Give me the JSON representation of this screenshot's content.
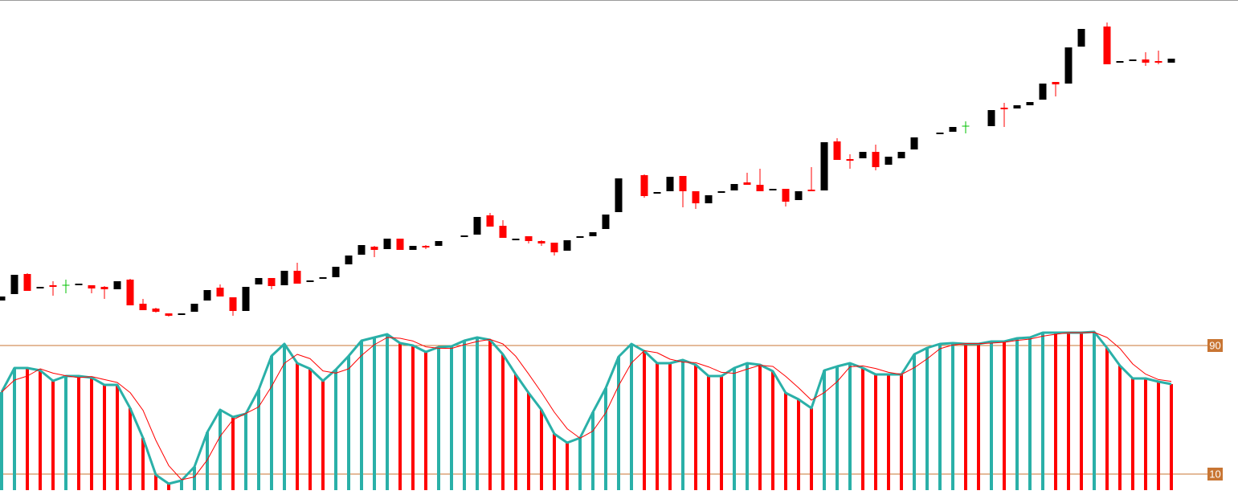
{
  "chart_data": [
    {
      "type": "candlestick",
      "open": [
        46,
        54,
        79,
        62,
        65,
        65,
        66,
        65,
        63,
        60,
        72,
        42,
        36,
        30,
        29,
        32,
        46,
        62,
        50,
        33,
        66,
        74,
        65,
        83,
        70,
        74,
        75,
        91,
        103,
        113,
        110,
        123,
        109,
        114,
        114,
        null,
        126,
        128,
        152,
        139,
        122,
        126,
        120,
        118,
        108,
        125,
        126,
        135,
        156,
        null,
        202,
        180,
        182,
        201,
        182,
        167,
        181,
        183,
        193,
        190,
        184,
        185,
        171,
        184,
        183,
        244,
        222,
        223,
        231,
        215,
        223,
        234,
        null,
        254,
        256,
        263,
        null,
        263,
        286,
        285,
        289,
        296,
        318,
        316,
        362,
        null,
        387,
        343,
        345,
        346,
        344,
        342
      ],
      "high": [
        51,
        78,
        80,
        63,
        70,
        72,
        67,
        65,
        64,
        70,
        73,
        48,
        37,
        30,
        30,
        42,
        59,
        66,
        50,
        63,
        74,
        74,
        83,
        93,
        71,
        75,
        88,
        102,
        115,
        114,
        123,
        123,
        114,
        115,
        120,
        null,
        127,
        150,
        155,
        146,
        123,
        126,
        121,
        118,
        121,
        126,
        131,
        153,
        198,
        null,
        203,
        181,
        200,
        201,
        182,
        177,
        182,
        191,
        205,
        210,
        185,
        185,
        182,
        212,
        243,
        248,
        228,
        231,
        240,
        225,
        231,
        249,
        null,
        255,
        262,
        269,
        null,
        283,
        292,
        289,
        293,
        316,
        318,
        361,
        384,
        null,
        392,
        344,
        346,
        355,
        357,
        347
      ],
      "low": [
        46,
        54,
        58,
        62,
        52,
        55,
        66,
        55,
        48,
        60,
        40,
        34,
        31,
        26,
        29,
        32,
        46,
        51,
        27,
        33,
        66,
        60,
        65,
        67,
        70,
        74,
        75,
        91,
        103,
        100,
        110,
        109,
        109,
        110,
        114,
        null,
        126,
        128,
        138,
        124,
        122,
        117,
        114,
        102,
        108,
        125,
        126,
        135,
        156,
        null,
        174,
        180,
        182,
        162,
        160,
        167,
        181,
        183,
        190,
        182,
        184,
        163,
        171,
        182,
        183,
        221,
        210,
        223,
        208,
        215,
        223,
        234,
        null,
        254,
        256,
        254,
        null,
        263,
        262,
        285,
        289,
        296,
        300,
        316,
        362,
        null,
        340,
        343,
        345,
        338,
        340,
        342
      ],
      "close": [
        51,
        78,
        58,
        63,
        64,
        65,
        67,
        61,
        60,
        70,
        40,
        34,
        32,
        27,
        30,
        42,
        59,
        51,
        33,
        63,
        74,
        64,
        83,
        67,
        71,
        75,
        88,
        102,
        115,
        109,
        123,
        109,
        114,
        112,
        120,
        null,
        127,
        150,
        138,
        124,
        123,
        120,
        117,
        106,
        121,
        126,
        131,
        153,
        198,
        null,
        176,
        181,
        200,
        182,
        167,
        177,
        182,
        191,
        190,
        182,
        185,
        169,
        182,
        182,
        243,
        221,
        220,
        231,
        212,
        225,
        231,
        249,
        null,
        255,
        262,
        263,
        null,
        283,
        284,
        289,
        293,
        316,
        315,
        361,
        384,
        null,
        340,
        344,
        346,
        342,
        342,
        347
      ],
      "up_color": "#000000",
      "down_color": "#ff0000",
      "doji_color": "#00c000",
      "ylim": [
        0,
        420
      ]
    },
    {
      "type": "oscillator",
      "values": [
        61,
        76,
        76,
        74.5,
        68,
        71,
        71,
        70,
        65.5,
        65.5,
        51,
        32.5,
        9.5,
        4,
        6,
        14.5,
        36,
        50,
        45.5,
        47.5,
        62.5,
        83.5,
        91,
        79,
        75.5,
        68,
        75,
        83.5,
        93,
        95,
        97,
        91.5,
        90,
        86,
        89,
        89.5,
        93,
        95,
        93.5,
        84.5,
        72,
        60.5,
        50,
        35,
        29.5,
        32.5,
        48.5,
        63.5,
        83,
        91,
        86.5,
        79,
        79,
        81,
        78,
        71,
        71,
        76,
        79,
        78,
        74,
        60.5,
        56.5,
        51,
        74.5,
        77,
        79,
        76,
        72,
        72,
        72,
        84.5,
        88.5,
        91,
        91.5,
        91,
        91,
        92.5,
        92.5,
        94.5,
        95,
        98,
        98,
        98,
        98,
        98.5,
        88.5,
        77.5,
        69.5,
        69.5,
        67.5,
        66
      ],
      "signal": [
        61,
        68.5,
        71,
        75.5,
        72.8,
        71.2,
        70,
        70.7,
        68.8,
        67,
        60.7,
        49.7,
        31,
        15.3,
        6.5,
        8.2,
        18.8,
        33.5,
        43.8,
        47.7,
        51.8,
        64.5,
        79,
        84.5,
        81.8,
        74.2,
        72.8,
        75.5,
        83.8,
        90.5,
        95,
        94.5,
        92.8,
        89.2,
        88.3,
        88.2,
        90.5,
        92.5,
        93.8,
        91,
        83.3,
        72.3,
        60.8,
        48.5,
        38.2,
        32.3,
        36.8,
        48.2,
        65,
        79.2,
        86.8,
        85.5,
        81.5,
        79.7,
        79.3,
        76.7,
        73.3,
        72.7,
        75.3,
        77.7,
        77,
        70.8,
        63.7,
        56,
        60.7,
        67.5,
        76.8,
        77.3,
        75.7,
        73.3,
        72,
        76.2,
        81.7,
        88,
        90.3,
        91.2,
        91.2,
        91.5,
        92,
        93.2,
        94,
        95.8,
        97,
        98,
        98,
        98.2,
        95,
        88.2,
        78.5,
        72.2,
        68.8,
        67.7
      ],
      "up_color": "#2ab0a8",
      "down_color": "#ff0000",
      "line_color": "#2ab0a8",
      "signal_color": "#ff0000",
      "level_color": "#c87533",
      "ylim": [
        0,
        100
      ],
      "yticks": [
        10,
        90
      ]
    }
  ]
}
